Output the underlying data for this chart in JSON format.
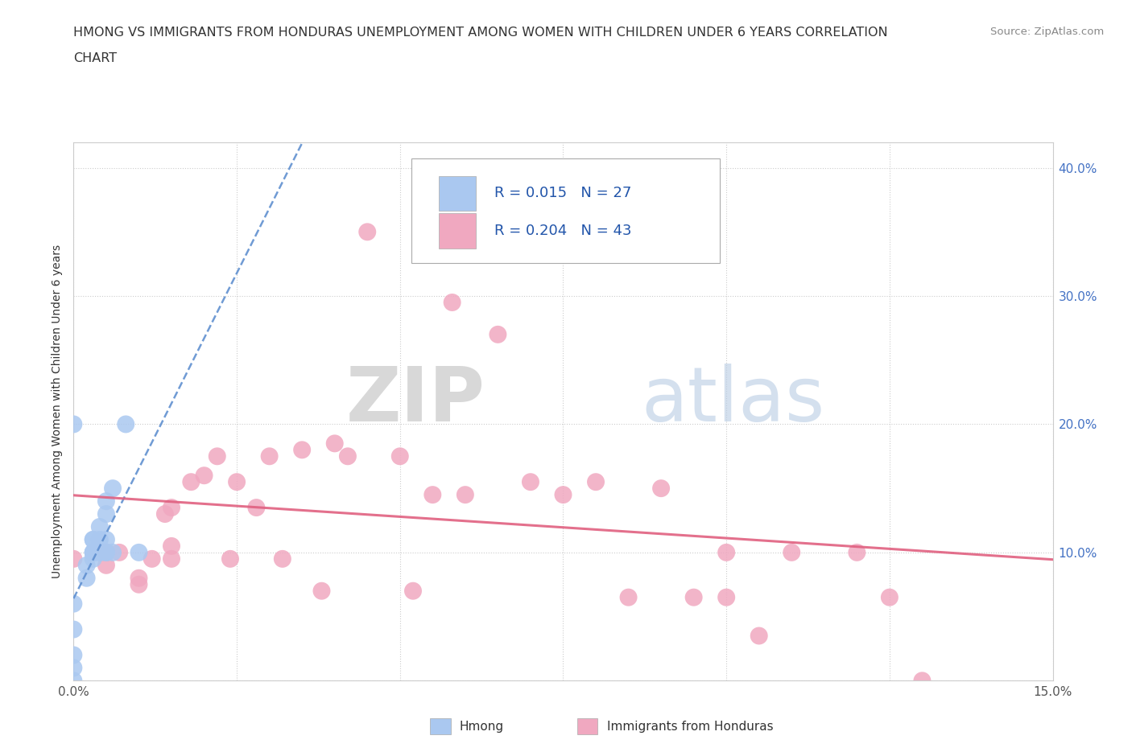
{
  "title_line1": "HMONG VS IMMIGRANTS FROM HONDURAS UNEMPLOYMENT AMONG WOMEN WITH CHILDREN UNDER 6 YEARS CORRELATION",
  "title_line2": "CHART",
  "source": "Source: ZipAtlas.com",
  "ylabel": "Unemployment Among Women with Children Under 6 years",
  "xlim": [
    0.0,
    0.15
  ],
  "ylim": [
    0.0,
    0.42
  ],
  "x_ticks": [
    0.0,
    0.025,
    0.05,
    0.075,
    0.1,
    0.125,
    0.15
  ],
  "y_ticks": [
    0.0,
    0.1,
    0.2,
    0.3,
    0.4
  ],
  "hmong_R": 0.015,
  "hmong_N": 27,
  "honduras_R": 0.204,
  "honduras_N": 43,
  "hmong_color": "#aac8f0",
  "honduras_color": "#f0a8c0",
  "hmong_line_color": "#6090d0",
  "honduras_line_color": "#e06080",
  "hmong_scatter_x": [
    0.0,
    0.0,
    0.0,
    0.0,
    0.0,
    0.002,
    0.002,
    0.003,
    0.003,
    0.003,
    0.003,
    0.003,
    0.003,
    0.004,
    0.004,
    0.004,
    0.004,
    0.005,
    0.005,
    0.005,
    0.005,
    0.005,
    0.006,
    0.006,
    0.008,
    0.01,
    0.0
  ],
  "hmong_scatter_y": [
    0.0,
    0.01,
    0.02,
    0.04,
    0.06,
    0.08,
    0.09,
    0.095,
    0.1,
    0.1,
    0.1,
    0.11,
    0.11,
    0.1,
    0.1,
    0.11,
    0.12,
    0.1,
    0.1,
    0.11,
    0.13,
    0.14,
    0.1,
    0.15,
    0.2,
    0.1,
    0.2
  ],
  "honduras_scatter_x": [
    0.0,
    0.005,
    0.005,
    0.007,
    0.01,
    0.01,
    0.012,
    0.014,
    0.015,
    0.015,
    0.015,
    0.018,
    0.02,
    0.022,
    0.024,
    0.025,
    0.028,
    0.03,
    0.032,
    0.035,
    0.038,
    0.04,
    0.042,
    0.045,
    0.05,
    0.052,
    0.055,
    0.058,
    0.06,
    0.065,
    0.07,
    0.075,
    0.08,
    0.085,
    0.09,
    0.095,
    0.1,
    0.1,
    0.105,
    0.11,
    0.12,
    0.125,
    0.13
  ],
  "honduras_scatter_y": [
    0.095,
    0.09,
    0.1,
    0.1,
    0.075,
    0.08,
    0.095,
    0.13,
    0.095,
    0.105,
    0.135,
    0.155,
    0.16,
    0.175,
    0.095,
    0.155,
    0.135,
    0.175,
    0.095,
    0.18,
    0.07,
    0.185,
    0.175,
    0.35,
    0.175,
    0.07,
    0.145,
    0.295,
    0.145,
    0.27,
    0.155,
    0.145,
    0.155,
    0.065,
    0.15,
    0.065,
    0.065,
    0.1,
    0.035,
    0.1,
    0.1,
    0.065,
    0.0
  ],
  "background_color": "#ffffff",
  "grid_color": "#cccccc",
  "watermark_zip": "ZIP",
  "watermark_atlas": "atlas"
}
